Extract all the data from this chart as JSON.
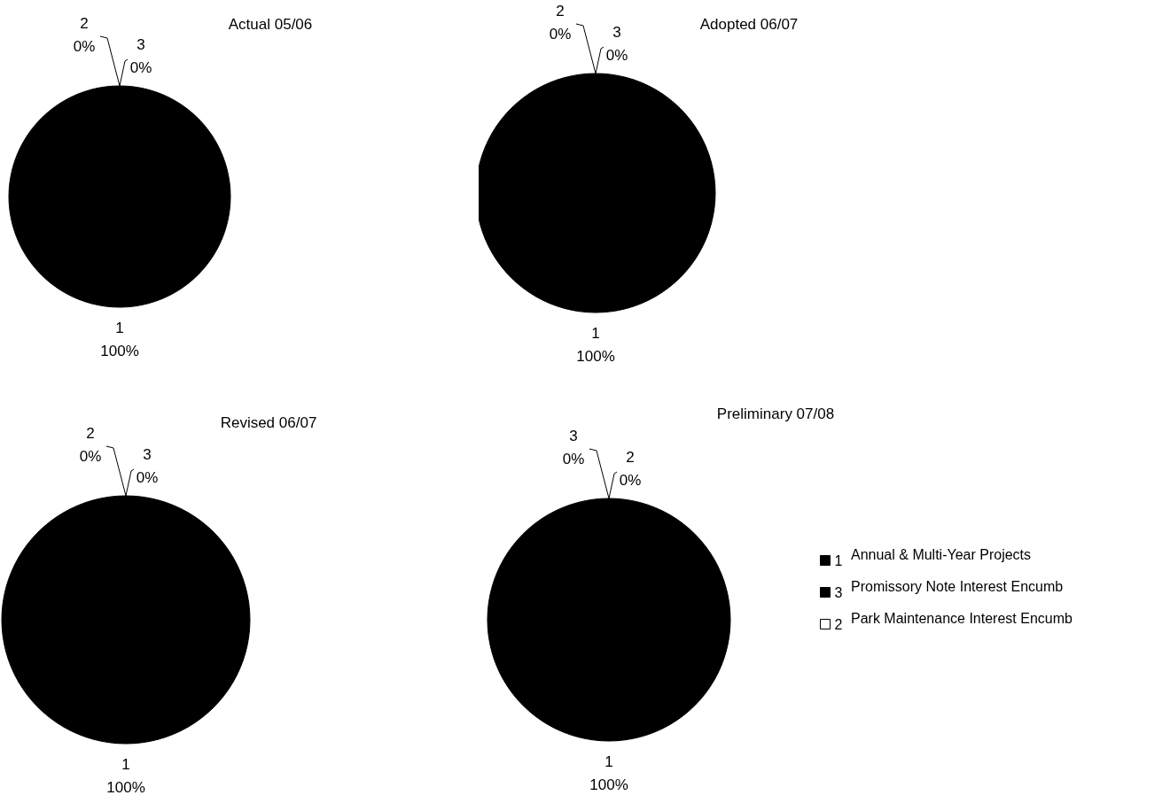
{
  "chart_data": [
    {
      "type": "pie",
      "title": "Actual 05/06",
      "categories": [
        "1",
        "2",
        "3"
      ],
      "values": [
        100,
        0,
        0
      ],
      "value_labels": [
        "100%",
        "0%",
        "0%"
      ],
      "colors": [
        "#000000",
        "#ffffff",
        "#000000"
      ],
      "legend": false
    },
    {
      "type": "pie",
      "title": "Adopted 06/07",
      "categories": [
        "1",
        "2",
        "3"
      ],
      "values": [
        100,
        0,
        0
      ],
      "value_labels": [
        "100%",
        "0%",
        "0%"
      ],
      "colors": [
        "#000000",
        "#ffffff",
        "#000000"
      ],
      "legend": false
    },
    {
      "type": "pie",
      "title": "Revised 06/07",
      "categories": [
        "1",
        "2",
        "3"
      ],
      "values": [
        100,
        0,
        0
      ],
      "value_labels": [
        "100%",
        "0%",
        "0%"
      ],
      "colors": [
        "#000000",
        "#ffffff",
        "#000000"
      ],
      "legend": false
    },
    {
      "type": "pie",
      "title": "Preliminary 07/08",
      "categories": [
        "1",
        "3",
        "2"
      ],
      "values": [
        100,
        0,
        0
      ],
      "value_labels": [
        "100%",
        "0%",
        "0%"
      ],
      "colors": [
        "#000000",
        "#000000",
        "#ffffff"
      ],
      "legend": "right",
      "annotations": [
        "Annual & Multi-Year Projects",
        "Promissory Note Interest Encumb",
        "Park Maintenance Interest Encumb"
      ]
    }
  ]
}
